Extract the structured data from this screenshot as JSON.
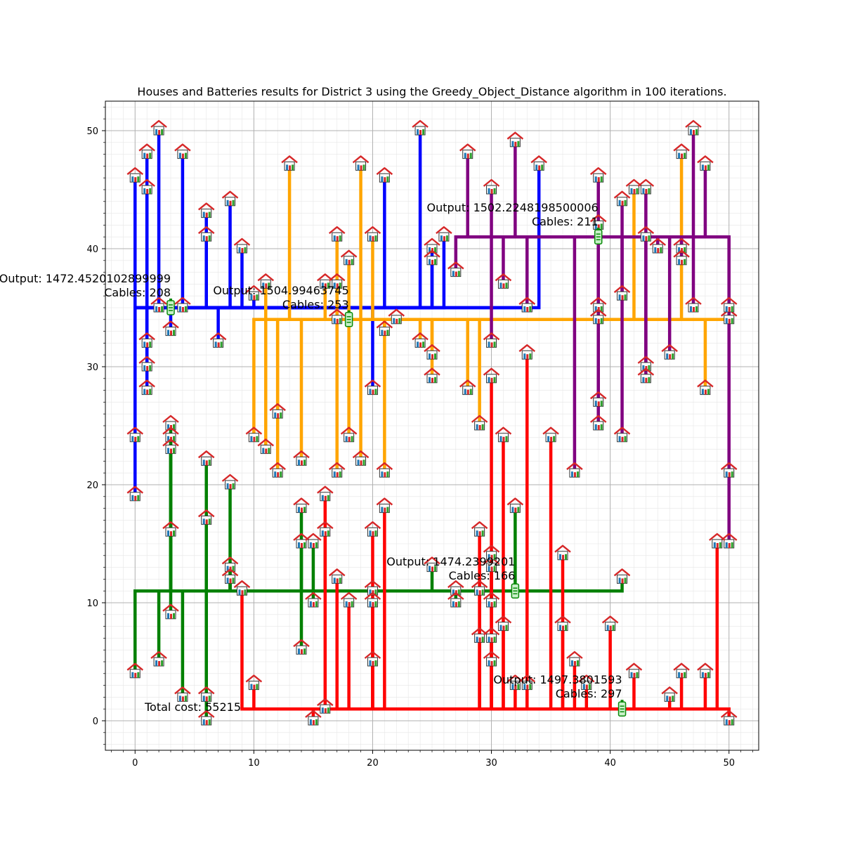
{
  "chart_data": {
    "type": "scatter",
    "title": "Houses and Batteries results for District 3 using the Greedy_Object_Distance algorithm in 100 iterations.",
    "xlim": [
      -2.5,
      52.5
    ],
    "ylim": [
      -2.5,
      52.5
    ],
    "xticks": [
      0,
      10,
      20,
      30,
      40,
      50
    ],
    "yticks": [
      0,
      10,
      20,
      30,
      40,
      50
    ],
    "grid": true,
    "total_cost_label": "Total cost: 55215",
    "batteries": [
      {
        "x": 3,
        "y": 35,
        "color": "#0000ff",
        "output_label": "Output: 1472.4520102899999",
        "cables_label": "Cables: 208",
        "houses": [
          [
            0,
            46
          ],
          [
            0,
            24
          ],
          [
            0,
            19
          ],
          [
            1,
            48
          ],
          [
            1,
            45
          ],
          [
            1,
            32
          ],
          [
            1,
            30
          ],
          [
            1,
            28
          ],
          [
            2,
            50
          ],
          [
            2,
            35
          ],
          [
            3,
            33
          ],
          [
            4,
            48
          ],
          [
            4,
            35
          ],
          [
            6,
            43
          ],
          [
            6,
            41
          ],
          [
            7,
            32
          ],
          [
            8,
            44
          ],
          [
            9,
            40
          ],
          [
            10,
            36
          ],
          [
            20,
            28
          ],
          [
            21,
            46
          ],
          [
            24,
            50
          ],
          [
            25,
            40
          ],
          [
            25,
            39
          ],
          [
            26,
            41
          ],
          [
            34,
            47
          ],
          [
            33,
            35
          ]
        ]
      },
      {
        "x": 18,
        "y": 34,
        "color": "#ffa500",
        "output_label": "Output: 1504.99463745",
        "cables_label": "Cables: 253",
        "houses": [
          [
            10,
            24
          ],
          [
            11,
            37
          ],
          [
            11,
            23
          ],
          [
            12,
            26
          ],
          [
            12,
            21
          ],
          [
            13,
            47
          ],
          [
            14,
            22
          ],
          [
            16,
            37
          ],
          [
            17,
            37
          ],
          [
            17,
            41
          ],
          [
            17,
            34
          ],
          [
            17,
            21
          ],
          [
            18,
            39
          ],
          [
            18,
            24
          ],
          [
            19,
            47
          ],
          [
            19,
            22
          ],
          [
            20,
            41
          ],
          [
            21,
            33
          ],
          [
            21,
            21
          ],
          [
            22,
            34
          ],
          [
            24,
            32
          ],
          [
            25,
            31
          ],
          [
            25,
            29
          ],
          [
            28,
            28
          ],
          [
            29,
            25
          ],
          [
            42,
            45
          ],
          [
            46,
            48
          ],
          [
            48,
            28
          ],
          [
            50,
            34
          ]
        ]
      },
      {
        "x": 39,
        "y": 41,
        "color": "#800080",
        "output_label": "Output: 1502.2248198500006",
        "cables_label": "Cables: 211",
        "houses": [
          [
            27,
            38
          ],
          [
            28,
            48
          ],
          [
            30,
            45
          ],
          [
            30,
            32
          ],
          [
            31,
            37
          ],
          [
            32,
            49
          ],
          [
            33,
            35
          ],
          [
            37,
            21
          ],
          [
            39,
            46
          ],
          [
            39,
            42
          ],
          [
            39,
            35
          ],
          [
            39,
            34
          ],
          [
            39,
            27
          ],
          [
            39,
            25
          ],
          [
            41,
            44
          ],
          [
            41,
            36
          ],
          [
            41,
            24
          ],
          [
            43,
            45
          ],
          [
            43,
            41
          ],
          [
            43,
            30
          ],
          [
            43,
            29
          ],
          [
            44,
            40
          ],
          [
            45,
            31
          ],
          [
            46,
            40
          ],
          [
            46,
            39
          ],
          [
            47,
            50
          ],
          [
            47,
            35
          ],
          [
            48,
            47
          ],
          [
            50,
            35
          ],
          [
            50,
            21
          ],
          [
            50,
            15
          ]
        ]
      },
      {
        "x": 32,
        "y": 11,
        "color": "#008000",
        "output_label": "Output: 1474.2399201",
        "cables_label": "Cables: 166",
        "houses": [
          [
            0,
            4
          ],
          [
            2,
            5
          ],
          [
            3,
            25
          ],
          [
            3,
            24
          ],
          [
            3,
            23
          ],
          [
            3,
            16
          ],
          [
            3,
            9
          ],
          [
            4,
            2
          ],
          [
            6,
            22
          ],
          [
            6,
            17
          ],
          [
            6,
            2
          ],
          [
            6,
            0
          ],
          [
            8,
            20
          ],
          [
            8,
            13
          ],
          [
            8,
            12
          ],
          [
            14,
            18
          ],
          [
            14,
            15
          ],
          [
            14,
            6
          ],
          [
            15,
            15
          ],
          [
            15,
            10
          ],
          [
            16,
            16
          ],
          [
            20,
            11
          ],
          [
            25,
            13
          ],
          [
            27,
            11
          ],
          [
            27,
            10
          ],
          [
            30,
            13
          ],
          [
            30,
            10
          ],
          [
            32,
            18
          ],
          [
            41,
            12
          ]
        ]
      },
      {
        "x": 41,
        "y": 1,
        "color": "#ff0000",
        "output_label": "Output: 1497.3801593",
        "cables_label": "Cables: 297",
        "houses": [
          [
            9,
            11
          ],
          [
            10,
            3
          ],
          [
            15,
            0
          ],
          [
            16,
            1
          ],
          [
            16,
            19
          ],
          [
            17,
            12
          ],
          [
            18,
            10
          ],
          [
            20,
            16
          ],
          [
            20,
            10
          ],
          [
            20,
            5
          ],
          [
            21,
            18
          ],
          [
            29,
            16
          ],
          [
            29,
            11
          ],
          [
            29,
            7
          ],
          [
            30,
            29
          ],
          [
            30,
            14
          ],
          [
            30,
            7
          ],
          [
            30,
            5
          ],
          [
            31,
            24
          ],
          [
            31,
            8
          ],
          [
            32,
            3
          ],
          [
            33,
            31
          ],
          [
            33,
            3
          ],
          [
            35,
            24
          ],
          [
            36,
            14
          ],
          [
            36,
            8
          ],
          [
            37,
            5
          ],
          [
            38,
            3
          ],
          [
            40,
            8
          ],
          [
            42,
            4
          ],
          [
            45,
            2
          ],
          [
            46,
            4
          ],
          [
            48,
            4
          ],
          [
            49,
            15
          ],
          [
            50,
            0
          ]
        ]
      }
    ]
  }
}
